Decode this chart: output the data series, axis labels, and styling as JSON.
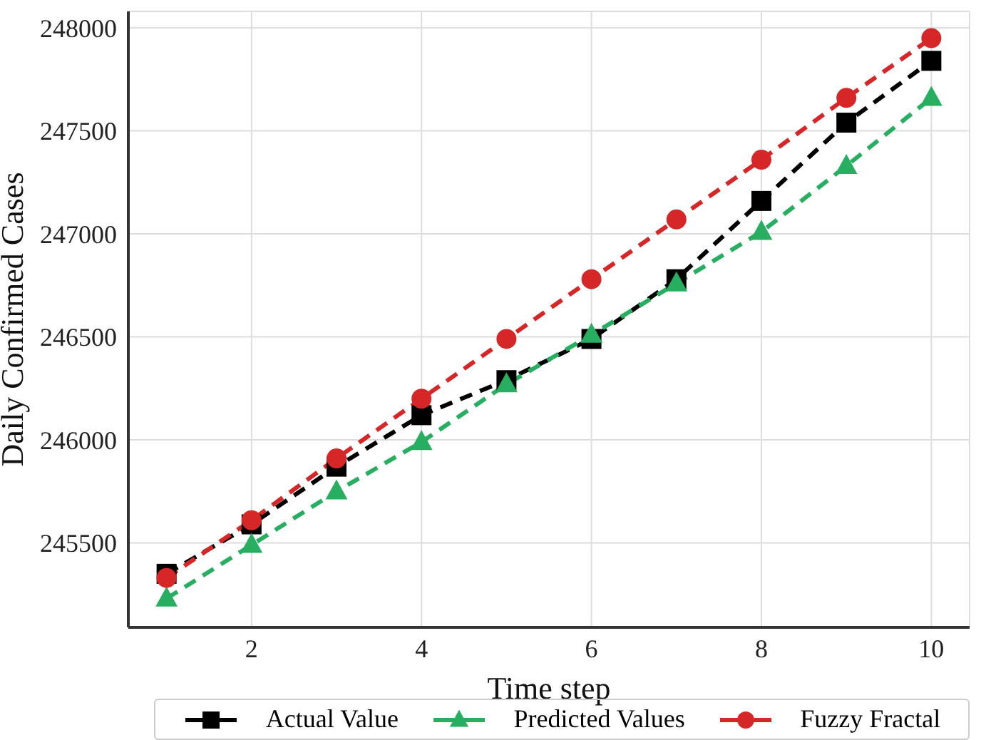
{
  "chart_data": {
    "type": "line",
    "xlabel": "Time step",
    "ylabel": "Daily Confirmed Cases",
    "x": [
      1,
      2,
      3,
      4,
      5,
      6,
      7,
      8,
      9,
      10
    ],
    "series": [
      {
        "name": "Actual Value",
        "color": "#000000",
        "marker": "square",
        "values": [
          245350,
          245590,
          245870,
          246120,
          246290,
          246490,
          246780,
          247160,
          247540,
          247840
        ]
      },
      {
        "name": "Predicted Values",
        "color": "#27ae60",
        "marker": "triangle",
        "values": [
          245230,
          245490,
          245750,
          245990,
          246270,
          246510,
          246760,
          247010,
          247330,
          247660
        ]
      },
      {
        "name": "Fuzzy Fractal",
        "color": "#d62728",
        "marker": "circle",
        "values": [
          245330,
          245610,
          245910,
          246200,
          246490,
          246780,
          247070,
          247360,
          247660,
          247950
        ]
      }
    ],
    "xlim": [
      0.55,
      10.45
    ],
    "xticks": [
      2,
      4,
      6,
      8,
      10
    ],
    "ylim": [
      245090,
      248080
    ],
    "yticks": [
      245500,
      246000,
      246500,
      247000,
      247500,
      248000
    ],
    "grid": true,
    "legend": "bottom",
    "line_style": "dashed"
  }
}
